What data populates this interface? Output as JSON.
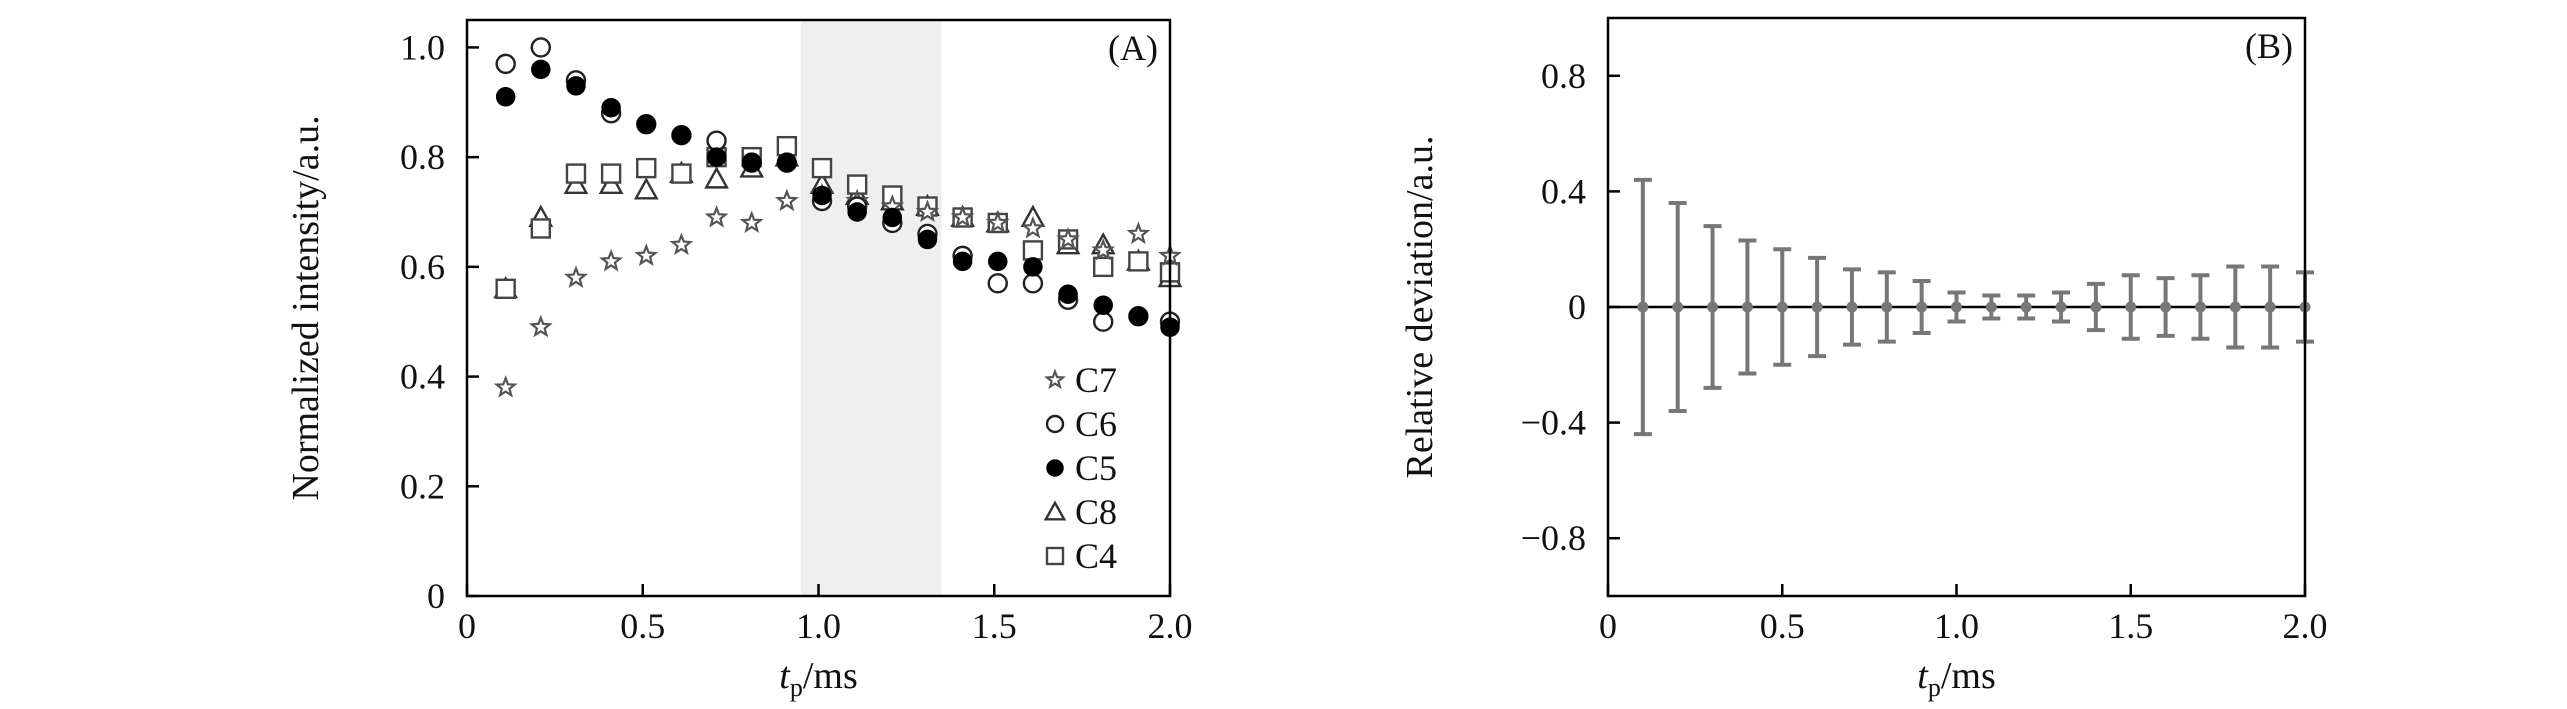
{
  "chart_data": [
    {
      "type": "scatter",
      "panel_label": "(A)",
      "title": "",
      "ylabel": "Normalized intensity/a.u.",
      "xlabel_main": "t",
      "xlabel_sub": "p",
      "xlabel_unit": "/ms",
      "xlim": [
        0,
        2.0
      ],
      "ylim": [
        0,
        1.05
      ],
      "xticks": [
        0,
        0.5,
        1.0,
        1.5,
        2.0
      ],
      "xtick_labels": [
        "0",
        "0.5",
        "1.0",
        "1.5",
        "2.0"
      ],
      "yticks": [
        0,
        0.2,
        0.4,
        0.6,
        0.8,
        1.0
      ],
      "ytick_labels": [
        "0",
        "0.2",
        "0.4",
        "0.6",
        "0.8",
        "1.0"
      ],
      "shaded_region": [
        0.95,
        1.35
      ],
      "legend_position": "lower-right",
      "x": [
        0.11,
        0.21,
        0.31,
        0.41,
        0.51,
        0.61,
        0.71,
        0.81,
        0.91,
        1.01,
        1.11,
        1.21,
        1.31,
        1.41,
        1.51,
        1.61,
        1.71,
        1.81,
        1.91,
        2.0
      ],
      "series": [
        {
          "name": "C7",
          "marker": "star-open",
          "color": "#555555",
          "values": [
            0.38,
            0.49,
            0.58,
            0.61,
            0.62,
            0.64,
            0.69,
            0.68,
            0.72,
            0.73,
            0.72,
            0.71,
            0.7,
            0.69,
            0.68,
            0.67,
            0.65,
            0.63,
            0.66,
            0.62
          ]
        },
        {
          "name": "C6",
          "marker": "circle-open",
          "color": "#222222",
          "values": [
            0.97,
            1.0,
            0.94,
            0.88,
            0.86,
            0.84,
            0.83,
            0.79,
            0.79,
            0.72,
            0.71,
            0.68,
            0.66,
            0.62,
            0.57,
            0.57,
            0.54,
            0.5,
            0.51,
            0.5
          ]
        },
        {
          "name": "C5",
          "marker": "circle-filled",
          "color": "#000000",
          "values": [
            0.91,
            0.96,
            0.93,
            0.89,
            0.86,
            0.84,
            0.8,
            0.79,
            0.79,
            0.73,
            0.7,
            0.69,
            0.65,
            0.61,
            0.61,
            0.6,
            0.55,
            0.53,
            0.51,
            0.49
          ]
        },
        {
          "name": "C8",
          "marker": "triangle-open",
          "color": "#333333",
          "values": [
            0.56,
            0.69,
            0.75,
            0.75,
            0.74,
            0.77,
            0.76,
            0.78,
            0.8,
            0.75,
            0.73,
            0.72,
            0.71,
            0.69,
            0.68,
            0.69,
            0.64,
            0.64,
            0.61,
            0.58
          ]
        },
        {
          "name": "C4",
          "marker": "square-open",
          "color": "#444444",
          "values": [
            0.56,
            0.67,
            0.77,
            0.77,
            0.78,
            0.77,
            0.8,
            0.8,
            0.82,
            0.78,
            0.75,
            0.73,
            0.71,
            0.69,
            0.68,
            0.63,
            0.65,
            0.6,
            0.61,
            0.59
          ]
        }
      ]
    },
    {
      "type": "errorbar",
      "panel_label": "(B)",
      "title": "",
      "ylabel": "Relative deviation/a.u.",
      "xlabel_main": "t",
      "xlabel_sub": "p",
      "xlabel_unit": "/ms",
      "xlim": [
        0,
        2.0
      ],
      "ylim": [
        -1.0,
        1.0
      ],
      "xticks": [
        0,
        0.5,
        1.0,
        1.5,
        2.0
      ],
      "xtick_labels": [
        "0",
        "0.5",
        "1.0",
        "1.5",
        "2.0"
      ],
      "yticks": [
        -0.8,
        -0.4,
        0,
        0.4,
        0.8
      ],
      "ytick_labels": [
        "−0.8",
        "−0.4",
        "0",
        "0.4",
        "0.8"
      ],
      "zero_line": true,
      "color": "#777777",
      "x": [
        0.1,
        0.2,
        0.3,
        0.4,
        0.5,
        0.6,
        0.7,
        0.8,
        0.9,
        1.0,
        1.1,
        1.2,
        1.3,
        1.4,
        1.5,
        1.6,
        1.7,
        1.8,
        1.9,
        2.0
      ],
      "values": [
        0,
        0,
        0,
        0,
        0,
        0,
        0,
        0,
        0,
        0,
        0,
        0,
        0,
        0,
        0,
        0,
        0,
        0,
        0,
        0
      ],
      "errors": [
        0.44,
        0.36,
        0.28,
        0.23,
        0.2,
        0.17,
        0.13,
        0.12,
        0.09,
        0.05,
        0.04,
        0.04,
        0.05,
        0.08,
        0.11,
        0.1,
        0.11,
        0.14,
        0.14,
        0.12
      ]
    }
  ]
}
